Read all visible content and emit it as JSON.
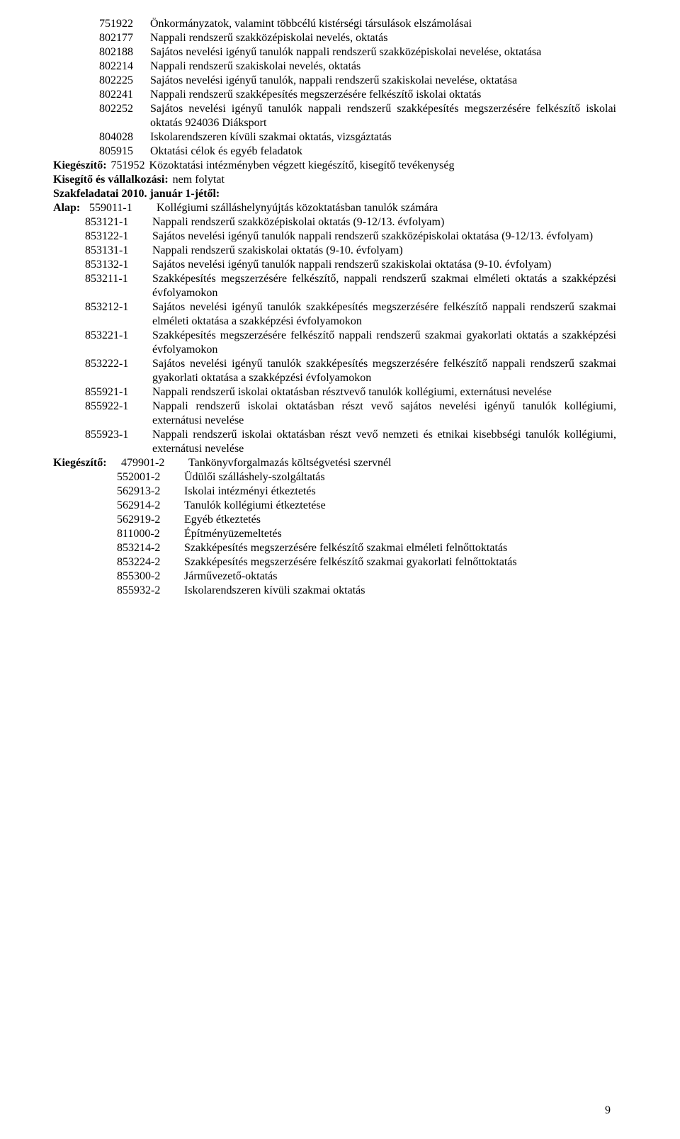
{
  "block1": [
    {
      "code": "751922",
      "text": "Önkormányzatok, valamint többcélú kistérségi társulások elszámolásai"
    },
    {
      "code": "802177",
      "text": "Nappali rendszerű szakközépiskolai nevelés, oktatás"
    },
    {
      "code": "802188",
      "text": "Sajátos nevelési igényű tanulók nappali rendszerű szakközépiskolai nevelése, oktatása"
    },
    {
      "code": "802214",
      "text": "Nappali rendszerű szakiskolai nevelés, oktatás"
    },
    {
      "code": "802225",
      "text": "Sajátos nevelési igényű tanulók, nappali rendszerű szakiskolai nevelése, oktatása"
    },
    {
      "code": "802241",
      "text": "Nappali rendszerű szakképesítés megszerzésére felkészítő iskolai oktatás"
    },
    {
      "code": "802252",
      "text": "Sajátos nevelési igényű tanulók nappali rendszerű szakképesítés megszerzésére felkészítő iskolai oktatás 924036      Diáksport"
    },
    {
      "code": "804028",
      "text": "Iskolarendszeren kívüli szakmai oktatás, vizsgáztatás"
    },
    {
      "code": "805915",
      "text": "Oktatási célok és egyéb feladatok"
    }
  ],
  "kieg1_label": "Kiegészítő:",
  "kieg1_code": "751952",
  "kieg1_text": "Közoktatási intézményben végzett kiegészítő, kisegítő tevékenység",
  "kisegito_label": "Kisegítő és vállalkozási:",
  "kisegito_text": "nem folytat",
  "szakfeladatai": "Szakfeladatai 2010. január 1-jétől:",
  "alap_label": "Alap:",
  "alap_first_code": "559011-1",
  "alap_first_text": "Kollégiumi szálláshelynyújtás közoktatásban tanulók számára",
  "alap_items": [
    {
      "code": "853121-1",
      "text": "Nappali rendszerű szakközépiskolai oktatás (9-12/13. évfolyam)"
    },
    {
      "code": "853122-1",
      "text": "Sajátos nevelési igényű tanulók nappali rendszerű szakközépiskolai oktatása (9-12/13. évfolyam)"
    },
    {
      "code": "853131-1",
      "text": "Nappali rendszerű szakiskolai oktatás (9-10. évfolyam)"
    },
    {
      "code": "853132-1",
      "text": "Sajátos nevelési igényű tanulók nappali rendszerű szakiskolai oktatása (9-10. évfolyam)"
    },
    {
      "code": "853211-1",
      "text": "Szakképesítés megszerzésére felkészítő, nappali rendszerű szakmai elméleti oktatás a szakképzési évfolyamokon"
    },
    {
      "code": "853212-1",
      "text": "Sajátos nevelési igényű tanulók szakképesítés megszerzésére felkészítő nappali rendszerű szakmai elméleti oktatása a szakképzési évfolyamokon"
    },
    {
      "code": "853221-1",
      "text": "Szakképesítés megszerzésére felkészítő nappali rendszerű szakmai gyakorlati oktatás a szakképzési évfolyamokon"
    },
    {
      "code": "853222-1",
      "text": "Sajátos nevelési igényű tanulók szakképesítés megszerzésére felkészítő nappali rendszerű szakmai gyakorlati oktatása a szakképzési évfolyamokon"
    },
    {
      "code": "855921-1",
      "text": "Nappali rendszerű iskolai oktatásban résztvevő tanulók kollégiumi, externátusi nevelése"
    },
    {
      "code": "855922-1",
      "text": "Nappali rendszerű iskolai oktatásban részt vevő sajátos nevelési igényű tanulók kollégiumi, externátusi nevelése"
    },
    {
      "code": "855923-1",
      "text": "Nappali rendszerű iskolai oktatásban részt vevő nemzeti és etnikai kisebbségi tanulók kollégiumi, externátusi nevelése"
    }
  ],
  "kieg2_label": "Kiegészítő:",
  "kieg2_first_code": "479901-2",
  "kieg2_first_text": "Tankönyvforgalmazás költségvetési szervnél",
  "kieg2_items": [
    {
      "code": "552001-2",
      "text": "Üdülői szálláshely-szolgáltatás"
    },
    {
      "code": "562913-2",
      "text": "Iskolai intézményi étkeztetés"
    },
    {
      "code": "562914-2",
      "text": "Tanulók kollégiumi étkeztetése"
    },
    {
      "code": "562919-2",
      "text": "Egyéb étkeztetés"
    },
    {
      "code": "811000-2",
      "text": "Építményüzemeltetés"
    },
    {
      "code": "853214-2",
      "text": "Szakképesítés megszerzésére felkészítő szakmai elméleti felnőttoktatás"
    },
    {
      "code": "853224-2",
      "text": "Szakképesítés megszerzésére felkészítő szakmai gyakorlati felnőttoktatás"
    },
    {
      "code": "855300-2",
      "text": "Járművezető-oktatás"
    },
    {
      "code": "855932-2",
      "text": "Iskolarendszeren kívüli szakmai oktatás"
    }
  ],
  "page_number": "9"
}
